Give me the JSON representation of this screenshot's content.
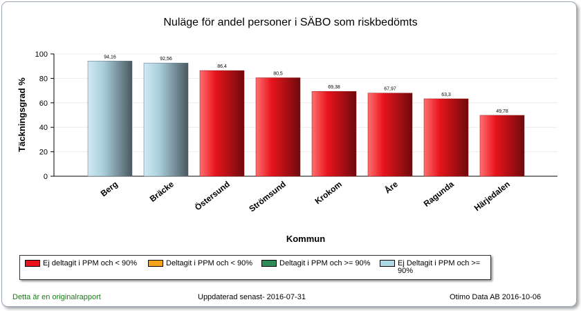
{
  "chart_data": {
    "type": "bar",
    "title": "Nuläge för andel personer i SÄBO som riskbedömts",
    "xlabel": "Kommun",
    "ylabel": "Täckningsgrad %",
    "ylim": [
      0,
      100
    ],
    "yticks": [
      "0",
      "20",
      "40",
      "60",
      "80",
      "100"
    ],
    "grid": true,
    "categories": [
      "Berg",
      "Bräcke",
      "Östersund",
      "Strömsund",
      "Krokom",
      "Åre",
      "Ragunda",
      "Härjedalen"
    ],
    "values": [
      94.16,
      92.56,
      86.4,
      80.5,
      69.38,
      67.97,
      63.3,
      49.78
    ],
    "value_labels": [
      "94,16",
      "92,56",
      "86,4",
      "80,5",
      "69,38",
      "67,97",
      "63,3",
      "49,78"
    ],
    "bar_groups": [
      "light-blue",
      "light-blue",
      "red",
      "red",
      "red",
      "red",
      "red",
      "red"
    ],
    "legend": [
      {
        "label": "Ej deltagit i PPM och < 90%",
        "color": "#e8141c"
      },
      {
        "label": "Deltagit i PPM och < 90%",
        "color": "#f5a31a"
      },
      {
        "label": "Deltagit i PPM och >= 90%",
        "color": "#2e8b57"
      },
      {
        "label": "Ej Deltagit i PPM och >= 90%",
        "color": "#add8e6"
      }
    ],
    "legend_placement": "bottom"
  },
  "footer": {
    "left": "Detta är en originalrapport",
    "center": "Uppdaterad senast- 2016-07-31",
    "right": "Otimo Data AB 2016-10-06"
  },
  "colors": {
    "footer_left": "#1a7a1a",
    "red_light": "#ff6b6b",
    "red_dark": "#7a0a0e",
    "blue_light": "#c6e6f2",
    "blue_dark": "#4d5d66"
  }
}
